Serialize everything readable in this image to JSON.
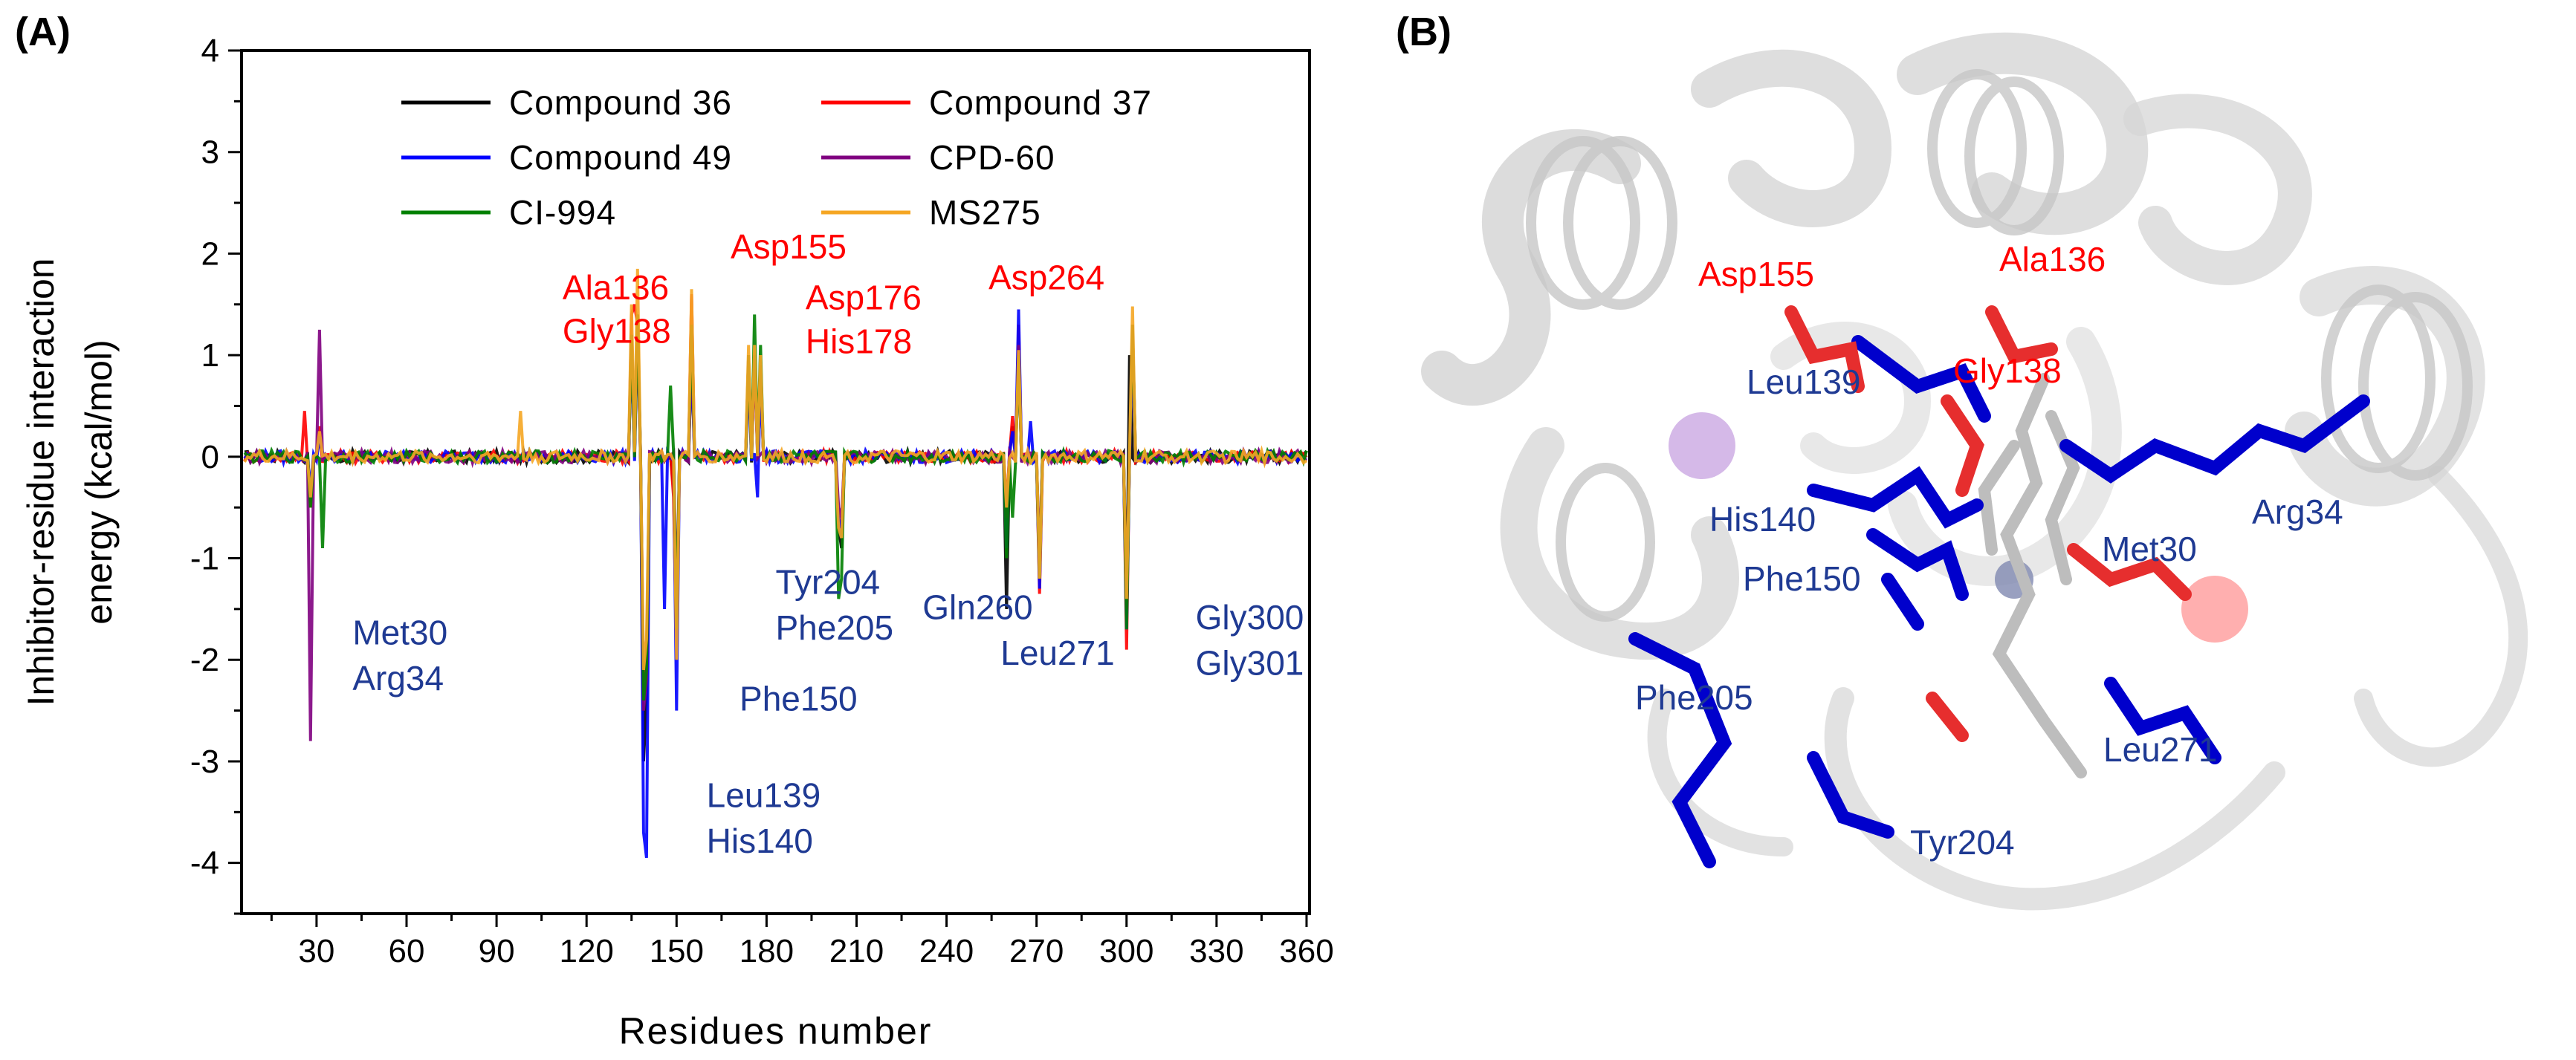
{
  "panel_a_label": "(A)",
  "panel_b_label": "(B)",
  "chart_data": {
    "type": "line",
    "xlabel": "Residues number",
    "ylabel_line1": "Inhibitor-residue interaction",
    "ylabel_line2": "energy (kcal/mol)",
    "xlim": [
      5,
      361
    ],
    "ylim": [
      -4.5,
      4
    ],
    "xticks": [
      30,
      60,
      90,
      120,
      150,
      180,
      210,
      240,
      270,
      300,
      330,
      360
    ],
    "yticks": [
      -4,
      -3,
      -2,
      -1,
      0,
      1,
      2,
      3,
      4
    ],
    "legend_position": "top",
    "series": [
      {
        "name": "Compound 36",
        "color": "#000000",
        "peaks": [
          [
            28,
            -0.45
          ],
          [
            31,
            0.2
          ],
          [
            135,
            1.2
          ],
          [
            137,
            1.4
          ],
          [
            139,
            -3.0
          ],
          [
            140,
            -2.4
          ],
          [
            149,
            -0.3
          ],
          [
            150,
            -2.0
          ],
          [
            155,
            1.0
          ],
          [
            174,
            0.9
          ],
          [
            176,
            1.0
          ],
          [
            178,
            0.8
          ],
          [
            204,
            -0.7
          ],
          [
            205,
            -0.9
          ],
          [
            260,
            -1.5
          ],
          [
            262,
            0.3
          ],
          [
            264,
            1.0
          ],
          [
            271,
            -1.2
          ],
          [
            300,
            -1.6
          ],
          [
            301,
            1.0
          ]
        ]
      },
      {
        "name": "Compound 37",
        "color": "#ff0000",
        "peaks": [
          [
            26,
            0.45
          ],
          [
            28,
            -0.5
          ],
          [
            31,
            0.3
          ],
          [
            135,
            1.4
          ],
          [
            136,
            1.5
          ],
          [
            137,
            1.3
          ],
          [
            139,
            -2.2
          ],
          [
            140,
            -2.0
          ],
          [
            149,
            -0.4
          ],
          [
            150,
            -2.0
          ],
          [
            155,
            1.6
          ],
          [
            174,
            1.0
          ],
          [
            176,
            1.0
          ],
          [
            178,
            0.9
          ],
          [
            204,
            -0.6
          ],
          [
            205,
            -0.7
          ],
          [
            260,
            -0.5
          ],
          [
            262,
            0.4
          ],
          [
            264,
            1.3
          ],
          [
            271,
            -1.35
          ],
          [
            300,
            -1.9
          ],
          [
            302,
            1.3
          ]
        ]
      },
      {
        "name": "Compound 49",
        "color": "#0000ff",
        "peaks": [
          [
            28,
            -0.3
          ],
          [
            31,
            0.2
          ],
          [
            135,
            1.1
          ],
          [
            137,
            1.3
          ],
          [
            139,
            -3.7
          ],
          [
            140,
            -3.95
          ],
          [
            146,
            -1.5
          ],
          [
            150,
            -2.5
          ],
          [
            155,
            1.0
          ],
          [
            174,
            0.8
          ],
          [
            177,
            -0.4
          ],
          [
            178,
            0.8
          ],
          [
            204,
            -0.6
          ],
          [
            205,
            -0.8
          ],
          [
            260,
            -0.9
          ],
          [
            262,
            0.25
          ],
          [
            264,
            1.45
          ],
          [
            268,
            0.35
          ],
          [
            271,
            -1.3
          ],
          [
            300,
            -1.7
          ],
          [
            302,
            1.1
          ]
        ]
      },
      {
        "name": "CPD-60",
        "color": "#800080",
        "peaks": [
          [
            28,
            -2.8
          ],
          [
            31,
            1.25
          ],
          [
            135,
            1.2
          ],
          [
            137,
            1.3
          ],
          [
            139,
            -2.5
          ],
          [
            140,
            -2.2
          ],
          [
            150,
            -1.5
          ],
          [
            155,
            1.2
          ],
          [
            174,
            0.9
          ],
          [
            176,
            1.0
          ],
          [
            204,
            -0.5
          ],
          [
            205,
            -0.6
          ],
          [
            260,
            -0.6
          ],
          [
            264,
            1.1
          ],
          [
            271,
            -1.0
          ],
          [
            300,
            -1.5
          ],
          [
            302,
            1.2
          ]
        ]
      },
      {
        "name": "CI-994",
        "color": "#008000",
        "peaks": [
          [
            28,
            -0.5
          ],
          [
            32,
            -0.9
          ],
          [
            135,
            1.2
          ],
          [
            137,
            1.4
          ],
          [
            139,
            -2.4
          ],
          [
            140,
            -2.1
          ],
          [
            148,
            0.7
          ],
          [
            150,
            -1.7
          ],
          [
            155,
            1.3
          ],
          [
            174,
            1.0
          ],
          [
            176,
            1.4
          ],
          [
            178,
            1.1
          ],
          [
            204,
            -1.4
          ],
          [
            205,
            -1.2
          ],
          [
            260,
            -1.0
          ],
          [
            262,
            -0.6
          ],
          [
            264,
            1.0
          ],
          [
            271,
            -1.2
          ],
          [
            300,
            -1.7
          ],
          [
            302,
            1.3
          ]
        ]
      },
      {
        "name": "MS275",
        "color": "#f5a623",
        "peaks": [
          [
            28,
            -0.4
          ],
          [
            31,
            0.25
          ],
          [
            98,
            0.45
          ],
          [
            135,
            1.5
          ],
          [
            137,
            1.85
          ],
          [
            139,
            -2.1
          ],
          [
            140,
            -1.8
          ],
          [
            150,
            -2.0
          ],
          [
            155,
            1.65
          ],
          [
            174,
            1.1
          ],
          [
            176,
            1.1
          ],
          [
            178,
            1.0
          ],
          [
            204,
            -0.7
          ],
          [
            205,
            -0.8
          ],
          [
            260,
            -0.5
          ],
          [
            264,
            1.05
          ],
          [
            271,
            -1.2
          ],
          [
            300,
            -1.4
          ],
          [
            302,
            1.48
          ]
        ]
      }
    ],
    "annotations": [
      {
        "text": "Ala136",
        "color": "#ff0000",
        "x": 112,
        "y": 1.55
      },
      {
        "text": "Gly138",
        "color": "#ff0000",
        "x": 112,
        "y": 1.12
      },
      {
        "text": "Asp155",
        "color": "#ff0000",
        "x": 168,
        "y": 1.95
      },
      {
        "text": "Asp176",
        "color": "#ff0000",
        "x": 193,
        "y": 1.45
      },
      {
        "text": "His178",
        "color": "#ff0000",
        "x": 193,
        "y": 1.02
      },
      {
        "text": "Asp264",
        "color": "#ff0000",
        "x": 254,
        "y": 1.65
      },
      {
        "text": "Met30",
        "color": "#1f3a93",
        "x": 42,
        "y": -1.85
      },
      {
        "text": "Arg34",
        "color": "#1f3a93",
        "x": 42,
        "y": -2.3
      },
      {
        "text": "Tyr204",
        "color": "#1f3a93",
        "x": 183,
        "y": -1.35
      },
      {
        "text": "Phe205",
        "color": "#1f3a93",
        "x": 183,
        "y": -1.8
      },
      {
        "text": "Gln260",
        "color": "#1f3a93",
        "x": 232,
        "y": -1.6
      },
      {
        "text": "Leu271",
        "color": "#1f3a93",
        "x": 258,
        "y": -2.05
      },
      {
        "text": "Gly300",
        "color": "#1f3a93",
        "x": 323,
        "y": -1.7
      },
      {
        "text": "Gly301",
        "color": "#1f3a93",
        "x": 323,
        "y": -2.15
      },
      {
        "text": "Phe150",
        "color": "#1f3a93",
        "x": 171,
        "y": -2.5
      },
      {
        "text": "Leu139",
        "color": "#1f3a93",
        "x": 160,
        "y": -3.45
      },
      {
        "text": "His140",
        "color": "#1f3a93",
        "x": 160,
        "y": -3.9
      }
    ]
  },
  "panel_b": {
    "labels": [
      {
        "text": "Asp155",
        "color": "#ff0000"
      },
      {
        "text": "Ala136",
        "color": "#ff0000"
      },
      {
        "text": "Gly138",
        "color": "#ff0000"
      },
      {
        "text": "Leu139",
        "color": "#1f3a93"
      },
      {
        "text": "His140",
        "color": "#1f3a93"
      },
      {
        "text": "Arg34",
        "color": "#1f3a93"
      },
      {
        "text": "Met30",
        "color": "#1f3a93"
      },
      {
        "text": "Phe150",
        "color": "#1f3a93"
      },
      {
        "text": "Phe205",
        "color": "#1f3a93"
      },
      {
        "text": "Leu271",
        "color": "#1f3a93"
      },
      {
        "text": "Tyr204",
        "color": "#1f3a93"
      }
    ]
  }
}
